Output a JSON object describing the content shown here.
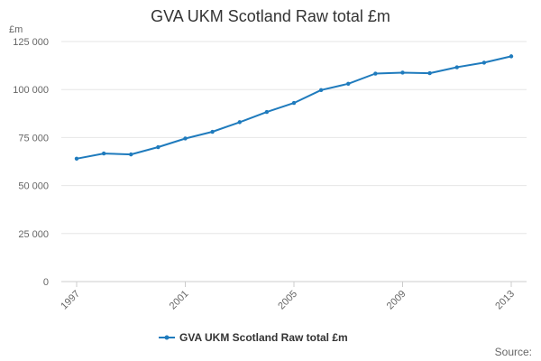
{
  "chart_data": {
    "type": "line",
    "title": "GVA UKM Scotland Raw total £m",
    "y_unit_label": "£m",
    "xlabel": "",
    "ylabel": "",
    "ylim": [
      0,
      125000
    ],
    "y_ticks": [
      0,
      25000,
      50000,
      75000,
      100000,
      125000
    ],
    "y_tick_labels": [
      "0",
      "25 000",
      "50 000",
      "75 000",
      "100 000",
      "125 000"
    ],
    "x_range": [
      1997,
      2013
    ],
    "x_ticks": [
      1997,
      2001,
      2005,
      2009,
      2013
    ],
    "x_tick_labels": [
      "1997",
      "2001",
      "2005",
      "2009",
      "2013"
    ],
    "grid": true,
    "legend_position": "bottom-center",
    "series": [
      {
        "name": "GVA UKM Scotland Raw total £m",
        "color": "#1f7bbd",
        "x": [
          1997,
          1998,
          1999,
          2000,
          2001,
          2002,
          2003,
          2004,
          2005,
          2006,
          2007,
          2008,
          2009,
          2010,
          2011,
          2012,
          2013
        ],
        "y": [
          64000,
          66700,
          66200,
          70000,
          74500,
          78000,
          83000,
          88300,
          93000,
          99700,
          103000,
          108300,
          108800,
          108500,
          111600,
          114000,
          117300
        ]
      }
    ],
    "source_label": "Source:"
  }
}
